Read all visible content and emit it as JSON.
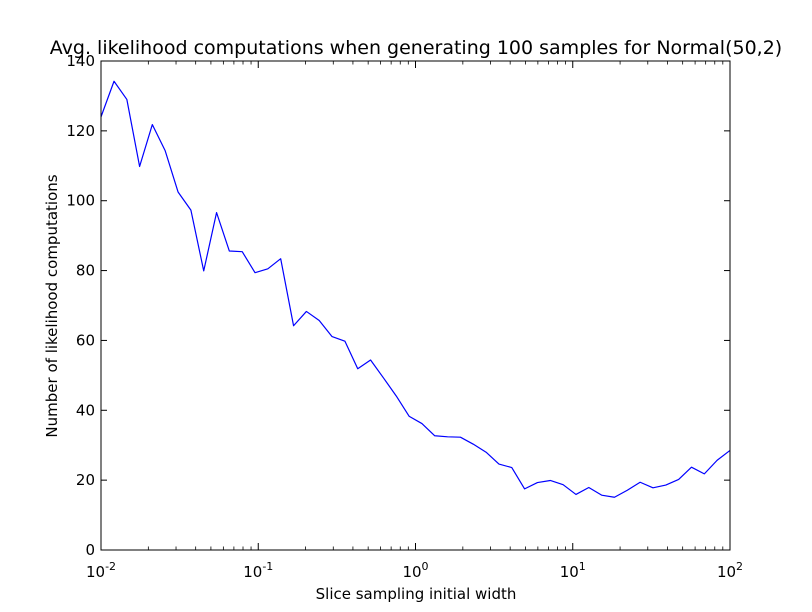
{
  "chart_data": {
    "type": "line",
    "title": "Avg. likelihood computations when generating 100 samples for Normal(50,2)",
    "xlabel": "Slice sampling initial width",
    "ylabel": "Number of likelihood computations",
    "xscale": "log",
    "xlim": [
      0.01,
      100
    ],
    "ylim": [
      0,
      140
    ],
    "x_ticks": [
      {
        "value": 0.01,
        "base": "10",
        "exp": "-2"
      },
      {
        "value": 0.1,
        "base": "10",
        "exp": "-1"
      },
      {
        "value": 1,
        "base": "10",
        "exp": "0"
      },
      {
        "value": 10,
        "base": "10",
        "exp": "1"
      },
      {
        "value": 100,
        "base": "10",
        "exp": "2"
      }
    ],
    "y_ticks": [
      0,
      20,
      40,
      60,
      80,
      100,
      120,
      140
    ],
    "grid": false,
    "series": [
      {
        "color": "#0000ff",
        "x": [
          0.01,
          0.0121,
          0.0146,
          0.0176,
          0.0212,
          0.0256,
          0.0309,
          0.0373,
          0.045,
          0.0543,
          0.0655,
          0.0791,
          0.0954,
          0.1151,
          0.1389,
          0.1677,
          0.2024,
          0.2442,
          0.2947,
          0.3556,
          0.4292,
          0.5179,
          0.625,
          0.7543,
          0.9103,
          1.0985,
          1.3257,
          1.5999,
          1.9307,
          2.33,
          2.8118,
          3.3932,
          4.0949,
          4.9417,
          5.9636,
          7.1969,
          8.6851,
          10.4811,
          12.6486,
          15.2642,
          18.4207,
          22.23,
          26.827,
          32.3746,
          39.0694,
          47.1487,
          56.8987,
          68.6649,
          82.8643,
          100
        ],
        "y": [
          124,
          134.2,
          129,
          109.8,
          121.8,
          114.3,
          102.5,
          97.3,
          79.9,
          96.6,
          85.6,
          85.4,
          79.4,
          80.5,
          83.4,
          64.2,
          68.3,
          65.7,
          61.1,
          59.8,
          51.9,
          54.4,
          49.3,
          44.1,
          38.3,
          36.2,
          32.7,
          32.4,
          32.3,
          30.3,
          28,
          24.6,
          23.6,
          17.5,
          19.3,
          19.9,
          18.7,
          15.9,
          17.9,
          15.7,
          15.1,
          17.1,
          19.4,
          17.8,
          18.6,
          20.2,
          23.7,
          21.8,
          25.7,
          28.5
        ]
      }
    ]
  }
}
